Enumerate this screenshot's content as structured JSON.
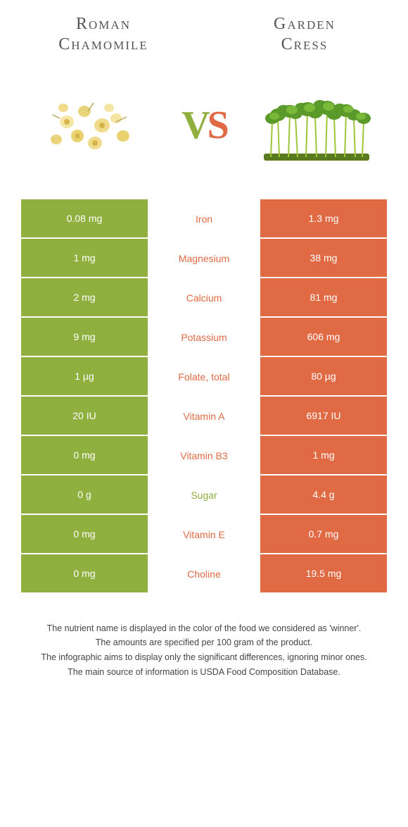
{
  "left_food": {
    "name_line1": "Roman",
    "name_line2": "Chamomile",
    "color": "#8fb03e"
  },
  "right_food": {
    "name_line1": "Garden",
    "name_line2": "Cress",
    "color": "#e06a44"
  },
  "rows": [
    {
      "nutrient": "Iron",
      "left": "0.08 mg",
      "right": "1.3 mg",
      "winner": "right"
    },
    {
      "nutrient": "Magnesium",
      "left": "1 mg",
      "right": "38 mg",
      "winner": "right"
    },
    {
      "nutrient": "Calcium",
      "left": "2 mg",
      "right": "81 mg",
      "winner": "right"
    },
    {
      "nutrient": "Potassium",
      "left": "9 mg",
      "right": "606 mg",
      "winner": "right"
    },
    {
      "nutrient": "Folate, total",
      "left": "1 µg",
      "right": "80 µg",
      "winner": "right"
    },
    {
      "nutrient": "Vitamin A",
      "left": "20 IU",
      "right": "6917 IU",
      "winner": "right"
    },
    {
      "nutrient": "Vitamin B3",
      "left": "0 mg",
      "right": "1 mg",
      "winner": "right"
    },
    {
      "nutrient": "Sugar",
      "left": "0 g",
      "right": "4.4 g",
      "winner": "left"
    },
    {
      "nutrient": "Vitamin E",
      "left": "0 mg",
      "right": "0.7 mg",
      "winner": "right"
    },
    {
      "nutrient": "Choline",
      "left": "0 mg",
      "right": "19.5 mg",
      "winner": "right"
    }
  ],
  "footnotes": [
    "The nutrient name is displayed in the color of the food we considered as 'winner'.",
    "The amounts are specified per 100 gram of the product.",
    "The infographic aims to display only the significant differences, ignoring minor ones.",
    "The main source of information is USDA Food Composition Database."
  ]
}
